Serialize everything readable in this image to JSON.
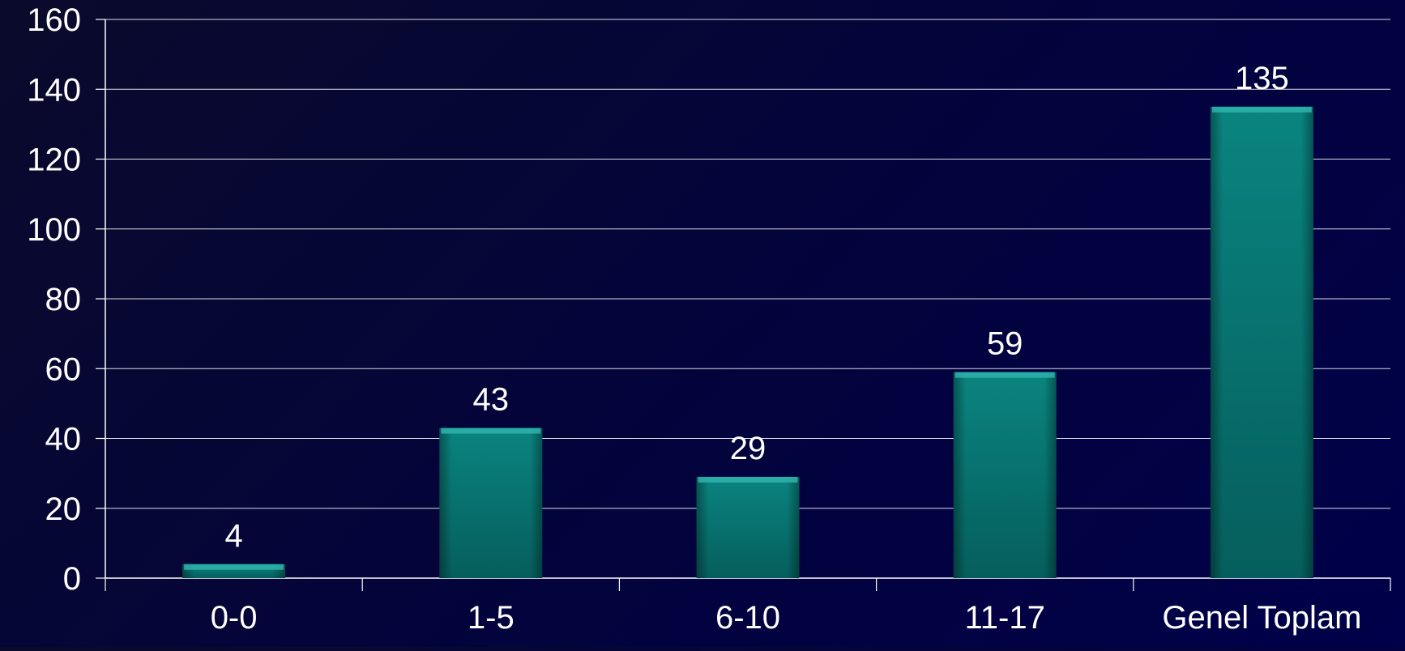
{
  "chart_data": {
    "type": "bar",
    "categories": [
      "0-0",
      "1-5",
      "6-10",
      "11-17",
      "Genel Toplam"
    ],
    "values": [
      4,
      43,
      29,
      59,
      135
    ],
    "title": "",
    "xlabel": "",
    "ylabel": "",
    "ylim": [
      0,
      160
    ],
    "yticks": [
      0,
      20,
      40,
      60,
      80,
      100,
      120,
      140,
      160
    ],
    "grid": true,
    "legend": "none",
    "data_labels": [
      "4",
      "43",
      "29",
      "59",
      "135"
    ],
    "colors": {
      "background": "#03033d",
      "bar": "#0a7a78",
      "bar_top": "#2fb3ad",
      "gridline": "#ffffff",
      "text": "#ffffff"
    }
  }
}
